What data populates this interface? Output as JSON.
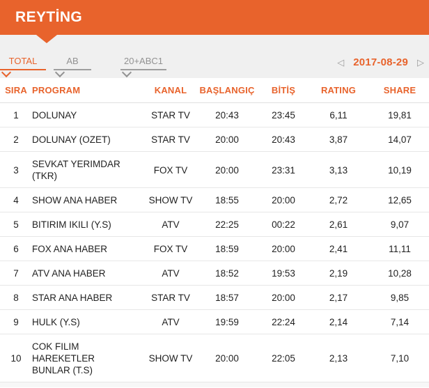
{
  "accent_color": "#E8632C",
  "toolbar_bg_color": "#F0F0F0",
  "header": {
    "title": "REYTİNG"
  },
  "tabs": [
    {
      "label": "TOTAL",
      "active": true
    },
    {
      "label": "AB",
      "active": false
    },
    {
      "label": "20+ABC1",
      "active": false
    }
  ],
  "date_nav": {
    "prev_icon": "◁",
    "date": "2017-08-29",
    "next_icon": "▷"
  },
  "table": {
    "columns": [
      "SIRA",
      "PROGRAM",
      "KANAL",
      "BAŞLANGIÇ",
      "BİTİŞ",
      "RATING",
      "SHARE"
    ],
    "rows": [
      [
        "1",
        "DOLUNAY",
        "STAR TV",
        "20:43",
        "23:45",
        "6,11",
        "19,81"
      ],
      [
        "2",
        "DOLUNAY (OZET)",
        "STAR TV",
        "20:00",
        "20:43",
        "3,87",
        "14,07"
      ],
      [
        "3",
        "SEVKAT YERIMDAR (TKR)",
        "FOX TV",
        "20:00",
        "23:31",
        "3,13",
        "10,19"
      ],
      [
        "4",
        "SHOW ANA HABER",
        "SHOW TV",
        "18:55",
        "20:00",
        "2,72",
        "12,65"
      ],
      [
        "5",
        "BITIRIM IKILI (Y.S)",
        "ATV",
        "22:25",
        "00:22",
        "2,61",
        "9,07"
      ],
      [
        "6",
        "FOX ANA HABER",
        "FOX TV",
        "18:59",
        "20:00",
        "2,41",
        "11,11"
      ],
      [
        "7",
        "ATV ANA HABER",
        "ATV",
        "18:52",
        "19:53",
        "2,19",
        "10,28"
      ],
      [
        "8",
        "STAR ANA HABER",
        "STAR TV",
        "18:57",
        "20:00",
        "2,17",
        "9,85"
      ],
      [
        "9",
        "HULK (Y.S)",
        "ATV",
        "19:59",
        "22:24",
        "2,14",
        "7,14"
      ],
      [
        "10",
        "COK FILIM HAREKETLER BUNLAR (T.S)",
        "SHOW TV",
        "20:00",
        "22:05",
        "2,13",
        "7,10"
      ]
    ]
  }
}
